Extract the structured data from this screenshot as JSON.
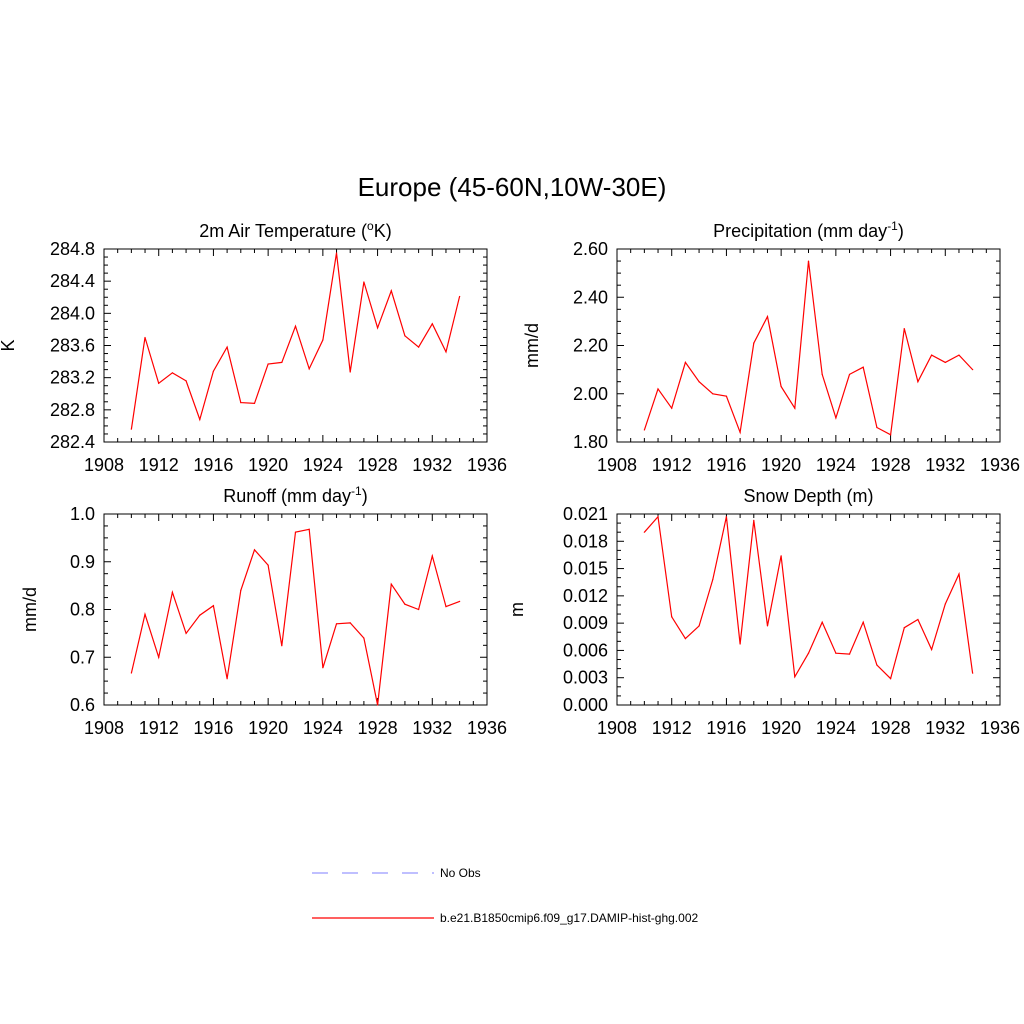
{
  "figure": {
    "title": "Europe (45-60N,10W-30E)"
  },
  "colors": {
    "model_line": "#ff0000",
    "obs_line": "#9999ff",
    "axis": "#000000"
  },
  "legend": {
    "placement": "bottom-center",
    "entries": [
      {
        "label": "No Obs",
        "style": "dashed",
        "color": "#9999ff"
      },
      {
        "label": "b.e21.B1850cmip6.f09_g17.DAMIP-hist-ghg.002",
        "style": "solid",
        "color": "#ff0000"
      }
    ]
  },
  "chart_data": [
    {
      "type": "line",
      "title": "2m Air Temperature (",
      "title_sup": "o",
      "title_tail": "K)",
      "ylabel": "K",
      "xlim": [
        1908,
        1936
      ],
      "ylim": [
        282.4,
        284.8
      ],
      "xticks": [
        "1908",
        "1912",
        "1916",
        "1920",
        "1924",
        "1928",
        "1932",
        "1936"
      ],
      "yticks": [
        "282.4",
        "282.8",
        "283.2",
        "283.6",
        "284.0",
        "284.4",
        "284.8"
      ],
      "grid": false,
      "x": [
        1910,
        1911,
        1912,
        1913,
        1914,
        1915,
        1916,
        1917,
        1918,
        1919,
        1920,
        1921,
        1922,
        1923,
        1924,
        1925,
        1926,
        1927,
        1928,
        1929,
        1930,
        1931,
        1932,
        1933,
        1934
      ],
      "series": [
        {
          "name": "b.e21.B1850cmip6.f09_g17.DAMIP-hist-ghg.002",
          "values": [
            282.56,
            283.7,
            283.13,
            283.26,
            283.16,
            282.68,
            283.28,
            283.58,
            282.89,
            282.88,
            283.37,
            283.39,
            283.84,
            283.31,
            283.67,
            284.75,
            283.27,
            284.39,
            283.82,
            284.28,
            283.72,
            283.58,
            283.87,
            283.52,
            284.21
          ]
        }
      ]
    },
    {
      "type": "line",
      "title": "Precipitation (mm day",
      "title_sup": "-1",
      "title_tail": ")",
      "ylabel": "mm/d",
      "xlim": [
        1908,
        1936
      ],
      "ylim": [
        1.8,
        2.6
      ],
      "xticks": [
        "1908",
        "1912",
        "1916",
        "1920",
        "1924",
        "1928",
        "1932",
        "1936"
      ],
      "yticks": [
        "1.80",
        "2.00",
        "2.20",
        "2.40",
        "2.60"
      ],
      "grid": false,
      "x": [
        1910,
        1911,
        1912,
        1913,
        1914,
        1915,
        1916,
        1917,
        1918,
        1919,
        1920,
        1921,
        1922,
        1923,
        1924,
        1925,
        1926,
        1927,
        1928,
        1929,
        1930,
        1931,
        1932,
        1933,
        1934
      ],
      "series": [
        {
          "name": "b.e21.B1850cmip6.f09_g17.DAMIP-hist-ghg.002",
          "values": [
            1.85,
            2.02,
            1.94,
            2.13,
            2.05,
            2.0,
            1.99,
            1.84,
            2.21,
            2.32,
            2.03,
            1.94,
            2.55,
            2.08,
            1.9,
            2.08,
            2.11,
            1.86,
            1.83,
            2.27,
            2.05,
            2.16,
            2.13,
            2.16,
            2.1
          ]
        }
      ]
    },
    {
      "type": "line",
      "title": "Runoff (mm day",
      "title_sup": "-1",
      "title_tail": ")",
      "ylabel": "mm/d",
      "xlim": [
        1908,
        1936
      ],
      "ylim": [
        0.6,
        1.0
      ],
      "xticks": [
        "1908",
        "1912",
        "1916",
        "1920",
        "1924",
        "1928",
        "1932",
        "1936"
      ],
      "yticks": [
        "0.6",
        "0.7",
        "0.8",
        "0.9",
        "1.0"
      ],
      "grid": false,
      "x": [
        1910,
        1911,
        1912,
        1913,
        1914,
        1915,
        1916,
        1917,
        1918,
        1919,
        1920,
        1921,
        1922,
        1923,
        1924,
        1925,
        1926,
        1927,
        1928,
        1929,
        1930,
        1931,
        1932,
        1933,
        1934
      ],
      "series": [
        {
          "name": "b.e21.B1850cmip6.f09_g17.DAMIP-hist-ghg.002",
          "values": [
            0.667,
            0.79,
            0.7,
            0.836,
            0.75,
            0.788,
            0.808,
            0.655,
            0.84,
            0.925,
            0.893,
            0.724,
            0.962,
            0.968,
            0.678,
            0.77,
            0.772,
            0.74,
            0.6,
            0.853,
            0.811,
            0.8,
            0.912,
            0.806,
            0.817
          ]
        }
      ]
    },
    {
      "type": "line",
      "title": "Snow Depth (m)",
      "title_sup": "",
      "title_tail": "",
      "ylabel": "m",
      "xlim": [
        1908,
        1936
      ],
      "ylim": [
        0.0,
        0.021
      ],
      "xticks": [
        "1908",
        "1912",
        "1916",
        "1920",
        "1924",
        "1928",
        "1932",
        "1936"
      ],
      "yticks": [
        "0.000",
        "0.003",
        "0.006",
        "0.009",
        "0.012",
        "0.015",
        "0.018",
        "0.021"
      ],
      "grid": false,
      "x": [
        1910,
        1911,
        1912,
        1913,
        1914,
        1915,
        1916,
        1917,
        1918,
        1919,
        1920,
        1921,
        1922,
        1923,
        1924,
        1925,
        1926,
        1927,
        1928,
        1929,
        1930,
        1931,
        1932,
        1933,
        1934
      ],
      "series": [
        {
          "name": "b.e21.B1850cmip6.f09_g17.DAMIP-hist-ghg.002",
          "values": [
            0.019,
            0.0207,
            0.0097,
            0.0073,
            0.0087,
            0.0138,
            0.0207,
            0.0067,
            0.0203,
            0.0087,
            0.0164,
            0.0031,
            0.0057,
            0.0091,
            0.0057,
            0.0056,
            0.0091,
            0.0044,
            0.0029,
            0.0085,
            0.0094,
            0.0061,
            0.0111,
            0.0144,
            0.0035
          ]
        }
      ]
    }
  ]
}
